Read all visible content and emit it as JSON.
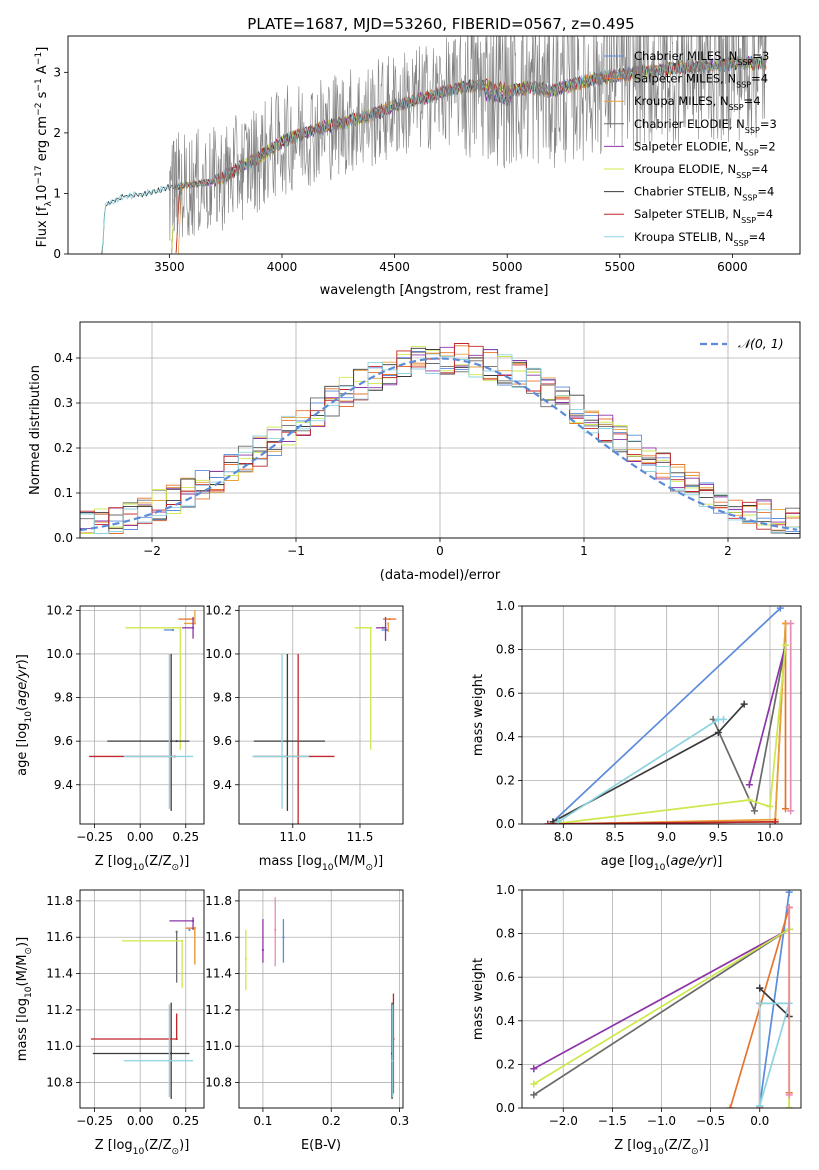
{
  "title": "PLATE=1687, MJD=53260, FIBERID=0567, z=0.495",
  "colors": {
    "chabrier_miles": "#5b8bd9",
    "salpeter_miles": "#e8742c",
    "kroupa_miles": "#e7a23c",
    "chabrier_elodie": "#6a6a6a",
    "salpeter_elodie": "#8e35a8",
    "kroupa_elodie": "#cde84c",
    "chabrier_stelib": "#3a3a3a",
    "salpeter_stelib": "#c0262b",
    "kroupa_stelib": "#8ed3e0",
    "gaussian": "#5b8bd9",
    "data_spectrum": "#808080",
    "pink": "#e88ab8",
    "grid": "#b0b0b0"
  },
  "chart_data": [
    {
      "id": "spectrum",
      "type": "line",
      "title": "PLATE=1687, MJD=53260, FIBERID=0567, z=0.495",
      "xlabel": "wavelength [Angstrom, rest frame]",
      "ylabel": "Flux [f_λ 10^-17 erg cm^-2 s^-1 A^-1]",
      "xlim": [
        3050,
        6300
      ],
      "ylim": [
        0,
        3.6
      ],
      "xticks": [
        3500,
        4000,
        4500,
        5000,
        5500,
        6000
      ],
      "yticks": [
        0,
        1,
        2,
        3
      ],
      "grid": false,
      "legend_position": "upper-right",
      "continuum_points": [
        [
          3200,
          0.0
        ],
        [
          3210,
          0.8
        ],
        [
          3300,
          0.95
        ],
        [
          3400,
          1.0
        ],
        [
          3500,
          1.1
        ],
        [
          3600,
          1.15
        ],
        [
          3700,
          1.2
        ],
        [
          3800,
          1.4
        ],
        [
          3900,
          1.6
        ],
        [
          4000,
          1.85
        ],
        [
          4100,
          2.0
        ],
        [
          4200,
          2.1
        ],
        [
          4300,
          2.2
        ],
        [
          4400,
          2.3
        ],
        [
          4500,
          2.45
        ],
        [
          4600,
          2.55
        ],
        [
          4700,
          2.65
        ],
        [
          4800,
          2.75
        ],
        [
          4900,
          2.8
        ],
        [
          5000,
          2.7
        ],
        [
          5100,
          2.75
        ],
        [
          5200,
          2.7
        ],
        [
          5300,
          2.8
        ],
        [
          5400,
          2.9
        ],
        [
          5500,
          2.95
        ],
        [
          5600,
          3.0
        ],
        [
          5700,
          3.05
        ],
        [
          5800,
          3.1
        ],
        [
          5900,
          3.1
        ],
        [
          6000,
          3.15
        ],
        [
          6150,
          3.15
        ]
      ],
      "data_start_wavelength": 3500,
      "series": [
        {
          "name": "Chabrier MILES",
          "n_ssp": "3"
        },
        {
          "name": "Salpeter MILES",
          "n_ssp": "4"
        },
        {
          "name": "Kroupa MILES",
          "n_ssp": "4"
        },
        {
          "name": "Chabrier ELODIE",
          "n_ssp": "3"
        },
        {
          "name": "Salpeter ELODIE",
          "n_ssp": "2"
        },
        {
          "name": "Kroupa ELODIE",
          "n_ssp": "4"
        },
        {
          "name": "Chabrier STELIB",
          "n_ssp": "4"
        },
        {
          "name": "Salpeter STELIB",
          "n_ssp": "4"
        },
        {
          "name": "Kroupa STELIB",
          "n_ssp": "4"
        }
      ]
    },
    {
      "id": "residuals",
      "type": "line",
      "xlabel": "(data-model)/error",
      "ylabel": "Normed distribution",
      "xlim": [
        -2.5,
        2.5
      ],
      "ylim": [
        0,
        0.48
      ],
      "xticks": [
        -2,
        -1,
        0,
        1,
        2
      ],
      "yticks": [
        0.0,
        0.1,
        0.2,
        0.3,
        0.4
      ],
      "grid": true,
      "legend_position": "upper-right",
      "gaussian_label": "𝒩(0, 1)",
      "bin_width": 0.1
    },
    {
      "id": "age_vs_Z",
      "type": "scatter",
      "xlabel": "Z [log10(Z/Z⊙)]",
      "ylabel": "age [log10(age/yr)]",
      "xlim": [
        -0.33,
        0.35
      ],
      "ylim": [
        9.22,
        10.22
      ],
      "xticks": [
        -0.25,
        0.0,
        0.25
      ],
      "yticks": [
        9.4,
        9.6,
        9.8,
        10.0,
        10.2
      ],
      "grid": true,
      "points": [
        {
          "series": "Chabrier MILES",
          "x": 0.18,
          "y": 10.11,
          "xerr": [
            0.05,
            0.0
          ],
          "yerr": [
            0.0,
            0.0
          ]
        },
        {
          "series": "Salpeter MILES",
          "x": 0.29,
          "y": 10.16,
          "xerr": [
            0.08,
            0.0
          ],
          "yerr": [
            0.0,
            0.0
          ]
        },
        {
          "series": "Kroupa MILES",
          "x": 0.3,
          "y": 10.14,
          "xerr": [
            0.06,
            0.0
          ],
          "yerr": [
            0.0,
            0.06
          ]
        },
        {
          "series": "Chabrier ELODIE",
          "x": 0.2,
          "y": 9.6,
          "xerr": [
            0.0,
            0.0
          ],
          "yerr": [
            0.0,
            0.0
          ]
        },
        {
          "series": "Salpeter ELODIE",
          "x": 0.29,
          "y": 10.12,
          "xerr": [
            0.06,
            0.0
          ],
          "yerr": [
            0.05,
            0.05
          ]
        },
        {
          "series": "Kroupa ELODIE",
          "x": 0.22,
          "y": 10.12,
          "xerr": [
            0.3,
            0.0
          ],
          "yerr": [
            0.56,
            0.0
          ]
        },
        {
          "series": "Chabrier STELIB",
          "x": 0.17,
          "y": 9.6,
          "xerr": [
            0.35,
            0.1
          ],
          "yerr": [
            0.32,
            0.4
          ]
        },
        {
          "series": "Salpeter STELIB",
          "x": 0.19,
          "y": 9.53,
          "xerr": [
            0.47,
            0.0
          ],
          "yerr": [
            0.0,
            0.0
          ]
        },
        {
          "series": "Kroupa STELIB",
          "x": 0.16,
          "y": 9.53,
          "xerr": [
            0.25,
            0.13
          ],
          "yerr": [
            0.24,
            0.47
          ]
        }
      ]
    },
    {
      "id": "age_vs_mass",
      "type": "scatter",
      "xlabel": "mass [log10(M/M⊙)]",
      "ylabel": "",
      "xlim": [
        10.6,
        11.82
      ],
      "ylim": [
        9.22,
        10.22
      ],
      "xticks": [
        11.0,
        11.5
      ],
      "yticks": [
        9.4,
        9.6,
        9.8,
        10.0,
        10.2
      ],
      "grid": true,
      "points": [
        {
          "series": "Chabrier MILES",
          "x": 11.7,
          "y": 10.11,
          "xerr": [
            0.04,
            0.0
          ],
          "yerr": [
            0.0,
            0.0
          ]
        },
        {
          "series": "Salpeter MILES",
          "x": 11.72,
          "y": 10.16,
          "xerr": [
            0.05,
            0.05
          ],
          "yerr": [
            0.0,
            0.0
          ]
        },
        {
          "series": "Kroupa MILES",
          "x": 11.71,
          "y": 10.14,
          "xerr": [
            0.0,
            0.0
          ],
          "yerr": [
            0.04,
            0.0
          ]
        },
        {
          "series": "Chabrier ELODIE",
          "x": 11.67,
          "y": 10.12,
          "xerr": [
            0.0,
            0.0
          ],
          "yerr": [
            0.0,
            0.0
          ]
        },
        {
          "series": "Salpeter ELODIE",
          "x": 11.69,
          "y": 10.12,
          "xerr": [
            0.07,
            0.0
          ],
          "yerr": [
            0.06,
            0.05
          ]
        },
        {
          "series": "Kroupa ELODIE",
          "x": 11.58,
          "y": 10.12,
          "xerr": [
            0.12,
            0.0
          ],
          "yerr": [
            0.56,
            0.0
          ]
        },
        {
          "series": "Chabrier STELIB",
          "x": 10.96,
          "y": 9.6,
          "xerr": [
            0.25,
            0.28
          ],
          "yerr": [
            0.32,
            0.4
          ]
        },
        {
          "series": "Salpeter STELIB",
          "x": 11.04,
          "y": 9.53,
          "xerr": [
            0.33,
            0.27
          ],
          "yerr": [
            0.33,
            0.47
          ]
        },
        {
          "series": "Kroupa STELIB",
          "x": 10.92,
          "y": 9.53,
          "xerr": [
            0.22,
            0.2
          ],
          "yerr": [
            0.24,
            0.47
          ]
        }
      ]
    },
    {
      "id": "weight_vs_age",
      "type": "line",
      "xlabel": "age [log10(age/yr)]",
      "ylabel": "mass weight",
      "xlim": [
        7.6,
        10.3
      ],
      "ylim": [
        0,
        1.0
      ],
      "xticks": [
        8.0,
        8.5,
        9.0,
        9.5,
        10.0
      ],
      "yticks": [
        0.0,
        0.2,
        0.4,
        0.6,
        0.8,
        1.0
      ],
      "grid": true,
      "series": [
        {
          "series": "Chabrier MILES",
          "x": [
            7.9,
            10.1
          ],
          "y": [
            0.01,
            0.99
          ]
        },
        {
          "series": "Salpeter MILES",
          "x": [
            7.9,
            10.05,
            10.15,
            10.15
          ],
          "y": [
            0.0,
            0.01,
            0.92,
            0.07
          ]
        },
        {
          "series": "Kroupa MILES",
          "x": [
            7.95,
            10.05,
            10.15
          ],
          "y": [
            0.0,
            0.02,
            0.92
          ]
        },
        {
          "series": "Chabrier ELODIE",
          "x": [
            9.45,
            9.85,
            10.15
          ],
          "y": [
            0.48,
            0.06,
            0.82
          ]
        },
        {
          "series": "Salpeter ELODIE",
          "x": [
            9.8,
            10.15
          ],
          "y": [
            0.18,
            0.82
          ]
        },
        {
          "series": "Kroupa ELODIE",
          "x": [
            7.9,
            9.8,
            10.0,
            10.15
          ],
          "y": [
            0.0,
            0.11,
            0.08,
            0.82
          ]
        },
        {
          "series": "Chabrier STELIB",
          "x": [
            7.9,
            9.5,
            9.75
          ],
          "y": [
            0.01,
            0.42,
            0.55
          ]
        },
        {
          "series": "Salpeter STELIB",
          "x": [
            7.85,
            10.05
          ],
          "y": [
            0.0,
            0.01
          ]
        },
        {
          "series": "Kroupa STELIB",
          "x": [
            7.95,
            9.5,
            9.55
          ],
          "y": [
            0.01,
            0.48,
            0.48
          ]
        },
        {
          "series": "pink",
          "x": [
            10.2,
            10.2
          ],
          "y": [
            0.06,
            0.92
          ]
        }
      ]
    },
    {
      "id": "mass_vs_Z",
      "type": "scatter",
      "xlabel": "Z [log10(Z/Z⊙)]",
      "ylabel": "mass [log10(M/M⊙)]",
      "xlim": [
        -0.33,
        0.35
      ],
      "ylim": [
        10.66,
        11.86
      ],
      "xticks": [
        -0.25,
        0.0,
        0.25
      ],
      "yticks": [
        10.8,
        11.0,
        11.2,
        11.4,
        11.6,
        11.8
      ],
      "grid": true,
      "points": [
        {
          "series": "Chabrier MILES",
          "x": 0.27,
          "y": 11.64,
          "xerr": [
            0.0,
            0.0
          ],
          "yerr": [
            0.0,
            0.0
          ]
        },
        {
          "series": "Salpeter MILES",
          "x": 0.3,
          "y": 11.65,
          "xerr": [
            0.05,
            0.0
          ],
          "yerr": [
            0.2,
            0.0
          ]
        },
        {
          "series": "Kroupa MILES",
          "x": 0.3,
          "y": 11.65,
          "xerr": [
            0.0,
            0.0
          ],
          "yerr": [
            0.2,
            0.0
          ]
        },
        {
          "series": "Chabrier ELODIE",
          "x": 0.2,
          "y": 11.63,
          "xerr": [
            0.0,
            0.0
          ],
          "yerr": [
            0.28,
            0.0
          ]
        },
        {
          "series": "Salpeter ELODIE",
          "x": 0.29,
          "y": 11.69,
          "xerr": [
            0.13,
            0.0
          ],
          "yerr": [
            0.05,
            0.02
          ]
        },
        {
          "series": "Kroupa ELODIE",
          "x": 0.23,
          "y": 11.58,
          "xerr": [
            0.33,
            0.0
          ],
          "yerr": [
            0.26,
            0.0
          ]
        },
        {
          "series": "Chabrier STELIB",
          "x": 0.17,
          "y": 10.96,
          "xerr": [
            0.43,
            0.1
          ],
          "yerr": [
            0.25,
            0.28
          ]
        },
        {
          "series": "Salpeter STELIB",
          "x": 0.2,
          "y": 11.04,
          "xerr": [
            0.47,
            0.0
          ],
          "yerr": [
            0.0,
            0.14
          ]
        },
        {
          "series": "Kroupa STELIB",
          "x": 0.16,
          "y": 10.92,
          "xerr": [
            0.25,
            0.13
          ],
          "yerr": [
            0.2,
            0.31
          ]
        }
      ]
    },
    {
      "id": "mass_vs_ebv",
      "type": "scatter",
      "xlabel": "E(B-V)",
      "ylabel": "",
      "xlim": [
        0.065,
        0.305
      ],
      "ylim": [
        10.66,
        11.86
      ],
      "xticks": [
        0.1,
        0.2,
        0.3
      ],
      "yticks": [
        10.8,
        11.0,
        11.2,
        11.4,
        11.6,
        11.8
      ],
      "grid": true,
      "points": [
        {
          "series": "Kroupa ELODIE",
          "x": 0.075,
          "y": 11.48,
          "xerr": [
            0.0,
            0.0
          ],
          "yerr": [
            0.17,
            0.16
          ]
        },
        {
          "series": "Salpeter ELODIE",
          "x": 0.1,
          "y": 11.53,
          "xerr": [
            0.0,
            0.0
          ],
          "yerr": [
            0.07,
            0.17
          ]
        },
        {
          "series": "pink",
          "x": 0.118,
          "y": 11.64,
          "xerr": [
            0.0,
            0.0
          ],
          "yerr": [
            0.2,
            0.18
          ]
        },
        {
          "series": "Chabrier MILES",
          "x": 0.13,
          "y": 11.6,
          "xerr": [
            0.0,
            0.0
          ],
          "yerr": [
            0.14,
            0.1
          ]
        },
        {
          "series": "Salpeter STELIB",
          "x": 0.291,
          "y": 11.04,
          "xerr": [
            0.0,
            0.0
          ],
          "yerr": [
            0.3,
            0.25
          ]
        },
        {
          "series": "Chabrier STELIB",
          "x": 0.289,
          "y": 10.96,
          "xerr": [
            0.0,
            0.0
          ],
          "yerr": [
            0.25,
            0.28
          ]
        },
        {
          "series": "Kroupa STELIB",
          "x": 0.29,
          "y": 10.92,
          "xerr": [
            0.0,
            0.0
          ],
          "yerr": [
            0.2,
            0.31
          ]
        }
      ]
    },
    {
      "id": "weight_vs_Z",
      "type": "line",
      "xlabel": "Z [log10(Z/Z⊙)]",
      "ylabel": "mass weight",
      "xlim": [
        -2.42,
        0.42
      ],
      "ylim": [
        0,
        1.0
      ],
      "xticks": [
        -2.0,
        -1.5,
        -1.0,
        -0.5,
        0.0
      ],
      "yticks": [
        0.0,
        0.2,
        0.4,
        0.6,
        0.8,
        1.0
      ],
      "grid": true,
      "series": [
        {
          "series": "Chabrier MILES",
          "x": [
            0.0,
            0.3
          ],
          "y": [
            0.01,
            0.99
          ]
        },
        {
          "series": "Salpeter MILES",
          "x": [
            -0.3,
            0.3,
            0.3
          ],
          "y": [
            0.0,
            0.92,
            0.07
          ]
        },
        {
          "series": "Kroupa MILES",
          "x": [
            0.3,
            0.3
          ],
          "y": [
            0.0,
            0.92
          ]
        },
        {
          "series": "Chabrier ELODIE",
          "x": [
            -2.3,
            0.3
          ],
          "y": [
            0.06,
            0.82
          ]
        },
        {
          "series": "Salpeter ELODIE",
          "x": [
            -2.3,
            0.3
          ],
          "y": [
            0.18,
            0.82
          ]
        },
        {
          "series": "Kroupa ELODIE",
          "x": [
            -2.3,
            0.3,
            0.3
          ],
          "y": [
            0.11,
            0.82,
            0.0
          ]
        },
        {
          "series": "Chabrier STELIB",
          "x": [
            0.0,
            0.3,
            0.0
          ],
          "y": [
            0.55,
            0.42,
            0.55
          ]
        },
        {
          "series": "Salpeter STELIB",
          "x": [
            0.0,
            0.0
          ],
          "y": [
            0.0,
            0.48
          ]
        },
        {
          "series": "Kroupa STELIB",
          "x": [
            0.0,
            0.3,
            0.0,
            0.0
          ],
          "y": [
            0.01,
            0.48,
            0.48,
            0.01
          ]
        },
        {
          "series": "pink",
          "x": [
            0.3,
            0.3
          ],
          "y": [
            0.06,
            0.92
          ]
        }
      ]
    }
  ]
}
